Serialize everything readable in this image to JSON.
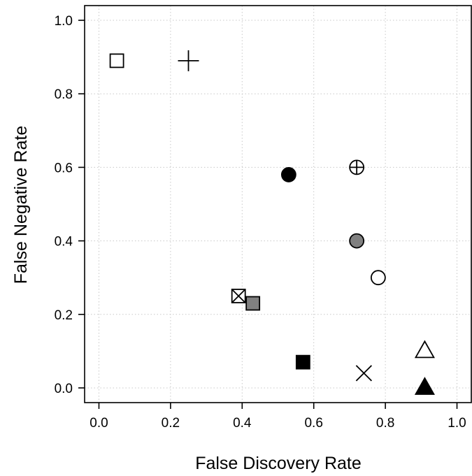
{
  "chart_data": {
    "type": "scatter",
    "title": "",
    "xlabel": "False Discovery Rate",
    "ylabel": "False Negative Rate",
    "xlim": [
      -0.04,
      1.04
    ],
    "ylim": [
      -0.04,
      1.04
    ],
    "x_ticks": [
      0.0,
      0.2,
      0.4,
      0.6,
      0.8,
      1.0
    ],
    "y_ticks": [
      0.0,
      0.2,
      0.4,
      0.6,
      0.8,
      1.0
    ],
    "x_tick_labels": [
      "0.0",
      "0.2",
      "0.4",
      "0.6",
      "0.8",
      "1.0"
    ],
    "y_tick_labels": [
      "0.0",
      "0.2",
      "0.4",
      "0.6",
      "0.8",
      "1.0"
    ],
    "grid": true,
    "points": [
      {
        "x": 0.05,
        "y": 0.89,
        "marker": "square-open"
      },
      {
        "x": 0.25,
        "y": 0.89,
        "marker": "plus"
      },
      {
        "x": 0.53,
        "y": 0.58,
        "marker": "circle-filled-black"
      },
      {
        "x": 0.72,
        "y": 0.6,
        "marker": "circle-plus"
      },
      {
        "x": 0.72,
        "y": 0.4,
        "marker": "circle-filled-gray"
      },
      {
        "x": 0.78,
        "y": 0.3,
        "marker": "circle-open"
      },
      {
        "x": 0.39,
        "y": 0.25,
        "marker": "square-x"
      },
      {
        "x": 0.43,
        "y": 0.23,
        "marker": "square-filled-gray"
      },
      {
        "x": 0.57,
        "y": 0.07,
        "marker": "square-filled-black"
      },
      {
        "x": 0.74,
        "y": 0.04,
        "marker": "x"
      },
      {
        "x": 0.91,
        "y": 0.1,
        "marker": "triangle-open"
      },
      {
        "x": 0.91,
        "y": 0.0,
        "marker": "triangle-filled-black"
      }
    ],
    "colors": {
      "black": "#000000",
      "gray": "#808080",
      "white": "#ffffff",
      "grid": "#c8c8c8"
    }
  }
}
